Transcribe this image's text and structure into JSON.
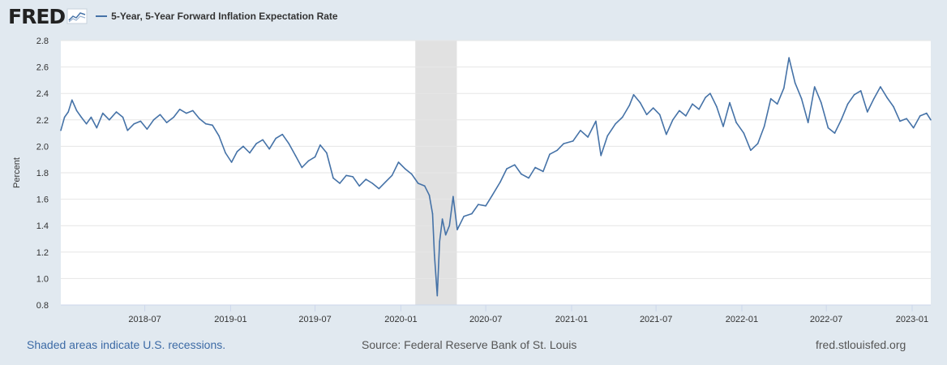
{
  "header": {
    "logo_text": "FRED",
    "series_title": "5-Year, 5-Year Forward Inflation Expectation Rate"
  },
  "footer": {
    "recession_note": "Shaded areas indicate U.S. recessions.",
    "source": "Source: Federal Reserve Bank of St. Louis",
    "site": "fred.stlouisfed.org"
  },
  "colors": {
    "series": "#4572a7",
    "recession": "#e1e1e1",
    "background": "#e1e9f0"
  },
  "chart_data": {
    "type": "line",
    "title": "",
    "xlabel": "",
    "ylabel": "Percent",
    "ylim": [
      0.8,
      2.8
    ],
    "yticks": [
      0.8,
      1.0,
      1.2,
      1.4,
      1.6,
      1.8,
      2.0,
      2.2,
      2.4,
      2.6,
      2.8
    ],
    "xlim": [
      "2018-01-02",
      "2023-02-10"
    ],
    "xticks": [
      "2018-07",
      "2019-01",
      "2019-07",
      "2020-01",
      "2020-07",
      "2021-01",
      "2021-07",
      "2022-01",
      "2022-07",
      "2023-01"
    ],
    "grid": "horizontal",
    "legend": "top-left",
    "recessions": [
      [
        "2020-02-01",
        "2020-04-30"
      ]
    ],
    "series": [
      {
        "name": "5-Year, 5-Year Forward Inflation Expectation Rate",
        "points": [
          [
            "2018-01-02",
            2.12
          ],
          [
            "2018-01-10",
            2.22
          ],
          [
            "2018-01-18",
            2.26
          ],
          [
            "2018-01-26",
            2.35
          ],
          [
            "2018-02-05",
            2.27
          ],
          [
            "2018-02-15",
            2.22
          ],
          [
            "2018-02-26",
            2.17
          ],
          [
            "2018-03-08",
            2.22
          ],
          [
            "2018-03-20",
            2.14
          ],
          [
            "2018-04-02",
            2.25
          ],
          [
            "2018-04-16",
            2.2
          ],
          [
            "2018-05-01",
            2.26
          ],
          [
            "2018-05-15",
            2.22
          ],
          [
            "2018-05-25",
            2.12
          ],
          [
            "2018-06-08",
            2.17
          ],
          [
            "2018-06-22",
            2.19
          ],
          [
            "2018-07-06",
            2.13
          ],
          [
            "2018-07-20",
            2.2
          ],
          [
            "2018-08-03",
            2.24
          ],
          [
            "2018-08-17",
            2.18
          ],
          [
            "2018-09-01",
            2.22
          ],
          [
            "2018-09-14",
            2.28
          ],
          [
            "2018-09-28",
            2.25
          ],
          [
            "2018-10-12",
            2.27
          ],
          [
            "2018-10-26",
            2.21
          ],
          [
            "2018-11-09",
            2.17
          ],
          [
            "2018-11-23",
            2.16
          ],
          [
            "2018-12-07",
            2.08
          ],
          [
            "2018-12-21",
            1.95
          ],
          [
            "2019-01-03",
            1.88
          ],
          [
            "2019-01-15",
            1.96
          ],
          [
            "2019-01-28",
            2.0
          ],
          [
            "2019-02-11",
            1.95
          ],
          [
            "2019-02-25",
            2.02
          ],
          [
            "2019-03-11",
            2.05
          ],
          [
            "2019-03-25",
            1.98
          ],
          [
            "2019-04-08",
            2.06
          ],
          [
            "2019-04-22",
            2.09
          ],
          [
            "2019-05-06",
            2.02
          ],
          [
            "2019-05-20",
            1.93
          ],
          [
            "2019-06-03",
            1.84
          ],
          [
            "2019-06-17",
            1.89
          ],
          [
            "2019-07-01",
            1.92
          ],
          [
            "2019-07-12",
            2.01
          ],
          [
            "2019-07-26",
            1.95
          ],
          [
            "2019-08-09",
            1.76
          ],
          [
            "2019-08-23",
            1.72
          ],
          [
            "2019-09-06",
            1.78
          ],
          [
            "2019-09-20",
            1.77
          ],
          [
            "2019-10-04",
            1.7
          ],
          [
            "2019-10-18",
            1.75
          ],
          [
            "2019-11-01",
            1.72
          ],
          [
            "2019-11-15",
            1.68
          ],
          [
            "2019-11-29",
            1.73
          ],
          [
            "2019-12-13",
            1.78
          ],
          [
            "2019-12-27",
            1.88
          ],
          [
            "2020-01-10",
            1.83
          ],
          [
            "2020-01-24",
            1.79
          ],
          [
            "2020-02-07",
            1.72
          ],
          [
            "2020-02-21",
            1.7
          ],
          [
            "2020-03-02",
            1.63
          ],
          [
            "2020-03-09",
            1.49
          ],
          [
            "2020-03-13",
            1.18
          ],
          [
            "2020-03-19",
            0.87
          ],
          [
            "2020-03-24",
            1.28
          ],
          [
            "2020-03-30",
            1.45
          ],
          [
            "2020-04-06",
            1.33
          ],
          [
            "2020-04-14",
            1.4
          ],
          [
            "2020-04-22",
            1.62
          ],
          [
            "2020-05-01",
            1.37
          ],
          [
            "2020-05-15",
            1.47
          ],
          [
            "2020-06-01",
            1.49
          ],
          [
            "2020-06-15",
            1.56
          ],
          [
            "2020-07-01",
            1.55
          ],
          [
            "2020-07-15",
            1.63
          ],
          [
            "2020-08-01",
            1.73
          ],
          [
            "2020-08-15",
            1.83
          ],
          [
            "2020-09-01",
            1.86
          ],
          [
            "2020-09-15",
            1.79
          ],
          [
            "2020-10-01",
            1.76
          ],
          [
            "2020-10-15",
            1.84
          ],
          [
            "2020-11-01",
            1.81
          ],
          [
            "2020-11-15",
            1.94
          ],
          [
            "2020-12-01",
            1.97
          ],
          [
            "2020-12-15",
            2.02
          ],
          [
            "2021-01-04",
            2.04
          ],
          [
            "2021-01-20",
            2.12
          ],
          [
            "2021-02-05",
            2.07
          ],
          [
            "2021-02-22",
            2.19
          ],
          [
            "2021-03-05",
            1.93
          ],
          [
            "2021-03-19",
            2.08
          ],
          [
            "2021-04-05",
            2.17
          ],
          [
            "2021-04-20",
            2.22
          ],
          [
            "2021-05-05",
            2.31
          ],
          [
            "2021-05-14",
            2.39
          ],
          [
            "2021-05-28",
            2.33
          ],
          [
            "2021-06-11",
            2.24
          ],
          [
            "2021-06-25",
            2.29
          ],
          [
            "2021-07-09",
            2.24
          ],
          [
            "2021-07-23",
            2.09
          ],
          [
            "2021-08-06",
            2.2
          ],
          [
            "2021-08-20",
            2.27
          ],
          [
            "2021-09-03",
            2.23
          ],
          [
            "2021-09-17",
            2.32
          ],
          [
            "2021-10-01",
            2.28
          ],
          [
            "2021-10-15",
            2.37
          ],
          [
            "2021-10-25",
            2.4
          ],
          [
            "2021-11-08",
            2.3
          ],
          [
            "2021-11-22",
            2.15
          ],
          [
            "2021-12-06",
            2.33
          ],
          [
            "2021-12-20",
            2.18
          ],
          [
            "2022-01-05",
            2.1
          ],
          [
            "2022-01-20",
            1.97
          ],
          [
            "2022-02-04",
            2.02
          ],
          [
            "2022-02-18",
            2.15
          ],
          [
            "2022-03-04",
            2.36
          ],
          [
            "2022-03-18",
            2.32
          ],
          [
            "2022-04-01",
            2.44
          ],
          [
            "2022-04-12",
            2.67
          ],
          [
            "2022-04-25",
            2.48
          ],
          [
            "2022-05-09",
            2.36
          ],
          [
            "2022-05-23",
            2.18
          ],
          [
            "2022-06-06",
            2.45
          ],
          [
            "2022-06-20",
            2.33
          ],
          [
            "2022-07-05",
            2.14
          ],
          [
            "2022-07-19",
            2.1
          ],
          [
            "2022-08-02",
            2.2
          ],
          [
            "2022-08-16",
            2.32
          ],
          [
            "2022-08-30",
            2.39
          ],
          [
            "2022-09-13",
            2.42
          ],
          [
            "2022-09-27",
            2.26
          ],
          [
            "2022-10-11",
            2.36
          ],
          [
            "2022-10-25",
            2.45
          ],
          [
            "2022-11-08",
            2.37
          ],
          [
            "2022-11-22",
            2.3
          ],
          [
            "2022-12-06",
            2.19
          ],
          [
            "2022-12-20",
            2.21
          ],
          [
            "2023-01-04",
            2.14
          ],
          [
            "2023-01-18",
            2.23
          ],
          [
            "2023-02-01",
            2.25
          ],
          [
            "2023-02-10",
            2.2
          ]
        ]
      }
    ]
  }
}
